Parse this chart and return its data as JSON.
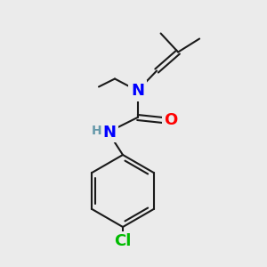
{
  "bg_color": "#ebebeb",
  "bond_color": "#1a1a1a",
  "bond_width": 1.5,
  "atom_colors": {
    "N": "#0000ff",
    "O": "#ff0000",
    "Cl": "#00bb00",
    "H": "#6699aa"
  },
  "font_size_large": 13,
  "font_size_small": 11,
  "fig_size": [
    3.0,
    3.0
  ],
  "dpi": 100,
  "xlim": [
    0,
    10
  ],
  "ylim": [
    0,
    10
  ]
}
